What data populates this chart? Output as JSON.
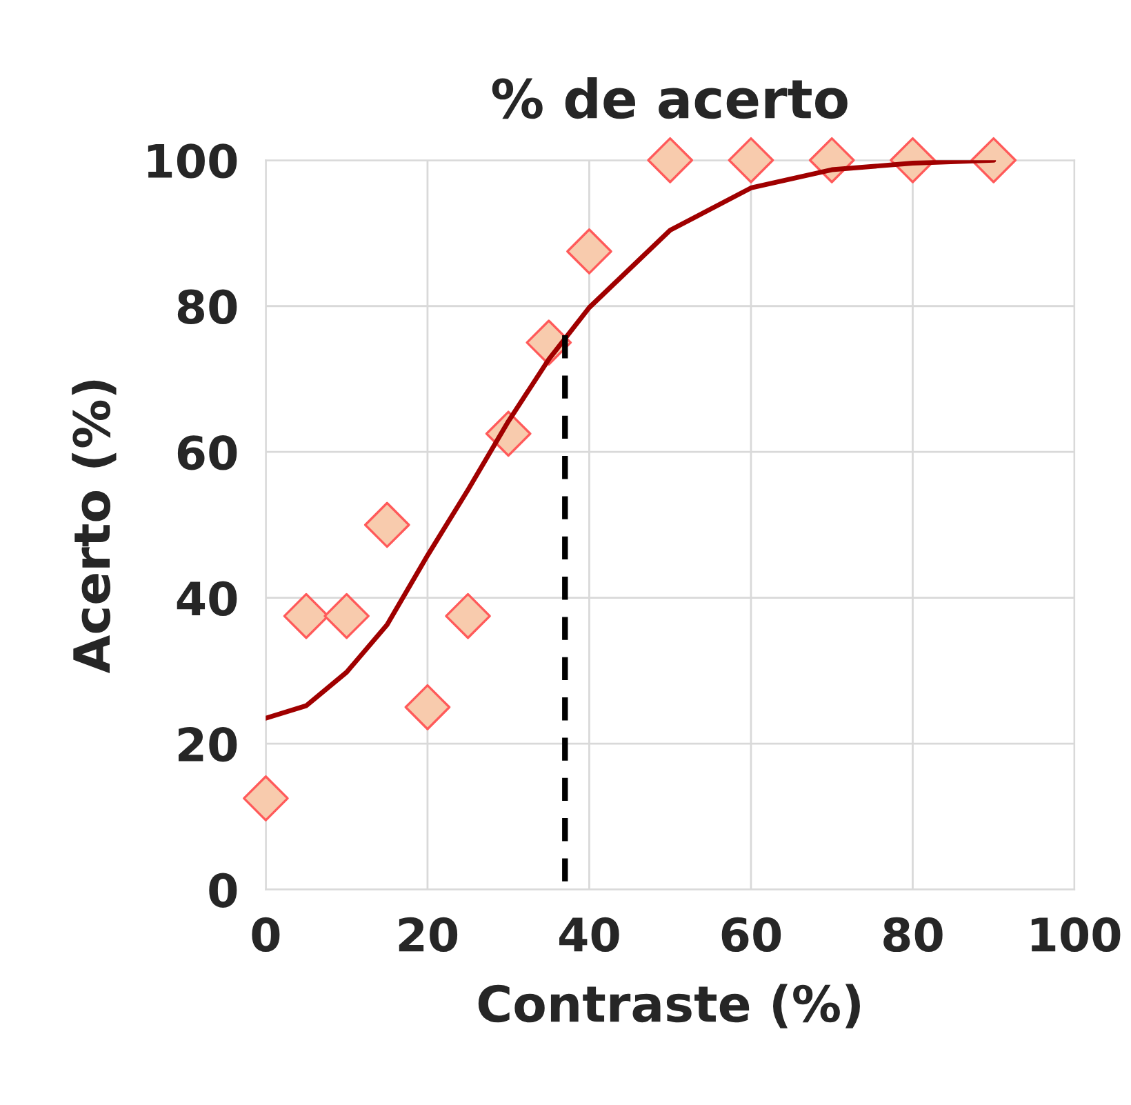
{
  "chart_data": {
    "type": "scatter",
    "title": "% de acerto",
    "xlabel": "Contraste (%)",
    "ylabel": "Acerto (%)",
    "xlim": [
      0,
      100
    ],
    "xticks": [
      0,
      20,
      40,
      60,
      80,
      100
    ],
    "ylim": [
      0,
      100
    ],
    "yticks": [
      0,
      20,
      40,
      60,
      80,
      100
    ],
    "grid": true,
    "series": [
      {
        "marker": "diamond",
        "color": "#f8cbad",
        "x": [
          0,
          5,
          10,
          15,
          20,
          25,
          30,
          35,
          40,
          50,
          60,
          70,
          80,
          90
        ],
        "values": [
          12.5,
          37.5,
          37.5,
          50,
          25,
          37.5,
          62.5,
          75,
          87.5,
          100,
          100,
          100,
          100,
          100
        ]
      },
      {
        "type": "line",
        "color": "#a00000",
        "line_style": "solid",
        "x": [
          0,
          5,
          10,
          15,
          20,
          25,
          30,
          35,
          40,
          50,
          60,
          70,
          80,
          90
        ],
        "values": [
          23.5,
          25.2,
          29.8,
          36.3,
          45.8,
          54.8,
          64.2,
          72.7,
          79.8,
          90.4,
          96.2,
          98.7,
          99.6,
          100
        ]
      },
      {
        "type": "line",
        "color": "#000000",
        "line_style": "dashed",
        "x": [
          37,
          37
        ],
        "values": [
          76,
          0
        ]
      }
    ]
  }
}
